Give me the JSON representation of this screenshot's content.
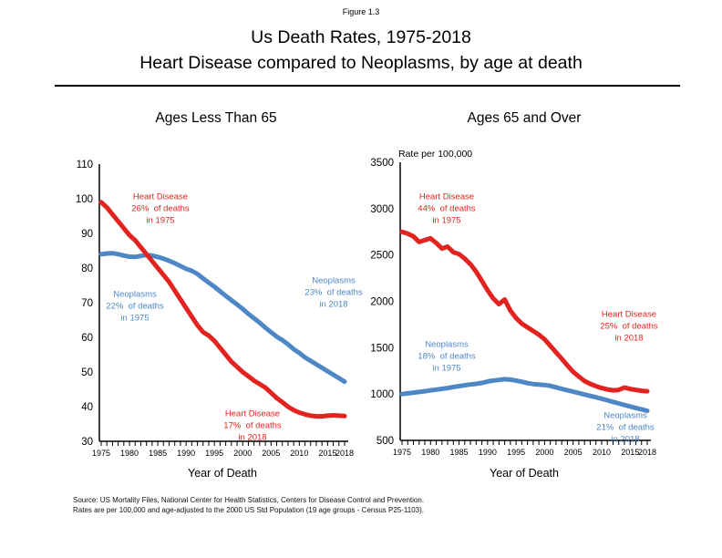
{
  "header": {
    "figure_label": "Figure 1.3",
    "title_line1": "Us Death Rates, 1975-2018",
    "title_line2": "Heart Disease compared to Neoplasms, by age at death"
  },
  "footer": {
    "source_line1": "Source: US Mortality Files, National Center for Health Statistics, Centers for Disease Control and Prevention.",
    "source_line2": "Rates are per 100,000 and age-adjusted to the 2000 US Std Population (19 age groups - Census P25-1103)."
  },
  "colors": {
    "heart_disease_red": "#e2231f",
    "neoplasms_blue": "#4e87c5",
    "axis_black": "#000000"
  },
  "chart_data": [
    {
      "type": "line",
      "title": "Ages Less Than 65",
      "xlabel": "Year of Death",
      "x_start": 1975,
      "x_end": 2018,
      "x_tick_labels": [
        "1975",
        "1980",
        "1985",
        "1990",
        "1995",
        "2000",
        "2005",
        "2010",
        "2015",
        "2018"
      ],
      "y_ticks": [
        30,
        40,
        50,
        60,
        70,
        80,
        90,
        100,
        110
      ],
      "ylim": [
        30,
        110
      ],
      "grid": false,
      "legend_position": "inline-annotations",
      "series": [
        {
          "name": "Neoplasms",
          "color": "#4e87c5",
          "values": [
            84,
            84.2,
            84.3,
            84,
            83.6,
            83.3,
            83.2,
            83.5,
            83.8,
            83.6,
            83.2,
            82.7,
            82.1,
            81.4,
            80.6,
            79.8,
            79.2,
            78.3,
            77,
            75.8,
            74.6,
            73.3,
            72,
            70.7,
            69.5,
            68.2,
            66.8,
            65.5,
            64.2,
            62.8,
            61.5,
            60.2,
            59.2,
            58,
            56.6,
            55.5,
            54.2,
            53.2,
            52.2,
            51.2,
            50.2,
            49.2,
            48.2,
            47.2
          ]
        },
        {
          "name": "Heart Disease",
          "color": "#e2231f",
          "values": [
            99,
            97.5,
            95.5,
            93.5,
            91.5,
            89.5,
            88,
            86,
            84,
            82,
            80,
            78,
            76,
            73.5,
            71,
            68.5,
            66,
            63.5,
            61.5,
            60.5,
            59,
            57,
            55,
            53,
            51.5,
            50,
            48.8,
            47.5,
            46.5,
            45.5,
            44,
            42.5,
            41.3,
            40,
            39,
            38.3,
            37.8,
            37.4,
            37.2,
            37.2,
            37.4,
            37.5,
            37.4,
            37.3
          ]
        }
      ],
      "annotations": [
        {
          "id": "heart-1975",
          "text": "Heart Disease\n26%  of deaths\nin 1975",
          "color": "#e2231f"
        },
        {
          "id": "neoplasms-1975",
          "text": "Neoplasms\n22%  of deaths\nin 1975",
          "color": "#4e87c5"
        },
        {
          "id": "neoplasms-2018",
          "text": "Neoplasms\n23%  of deaths\nin 2018",
          "color": "#4e87c5"
        },
        {
          "id": "heart-2018",
          "text": "Heart Disease\n17%  of deaths\nin 2018",
          "color": "#e2231f"
        }
      ]
    },
    {
      "type": "line",
      "title": "Ages 65 and Over",
      "xlabel": "Year of Death",
      "y_axis_note": "Rate per 100,000",
      "x_start": 1975,
      "x_end": 2018,
      "x_tick_labels": [
        "1975",
        "1980",
        "1985",
        "1990",
        "1995",
        "2000",
        "2005",
        "2010",
        "2015",
        "2018"
      ],
      "y_ticks": [
        500,
        1000,
        1500,
        2000,
        2500,
        3000,
        3500
      ],
      "ylim": [
        500,
        3500
      ],
      "grid": false,
      "legend_position": "inline-annotations",
      "series": [
        {
          "name": "Neoplasms",
          "color": "#4e87c5",
          "values": [
            1000,
            1008,
            1015,
            1022,
            1030,
            1040,
            1048,
            1056,
            1065,
            1075,
            1085,
            1095,
            1103,
            1110,
            1120,
            1135,
            1145,
            1152,
            1160,
            1155,
            1145,
            1132,
            1118,
            1108,
            1102,
            1098,
            1088,
            1072,
            1056,
            1040,
            1025,
            1010,
            995,
            980,
            965,
            950,
            933,
            915,
            898,
            882,
            866,
            850,
            835,
            820
          ]
        },
        {
          "name": "Heart Disease",
          "color": "#e2231f",
          "values": [
            2750,
            2730,
            2700,
            2640,
            2660,
            2680,
            2630,
            2570,
            2590,
            2530,
            2510,
            2460,
            2400,
            2320,
            2220,
            2120,
            2030,
            1970,
            2020,
            1900,
            1820,
            1760,
            1720,
            1680,
            1640,
            1590,
            1520,
            1450,
            1380,
            1310,
            1240,
            1190,
            1140,
            1110,
            1085,
            1065,
            1050,
            1040,
            1045,
            1070,
            1055,
            1045,
            1035,
            1030
          ]
        }
      ],
      "annotations": [
        {
          "id": "heart-1975",
          "text": "Heart Disease\n44%  of deaths\nin 1975",
          "color": "#e2231f"
        },
        {
          "id": "neoplasms-1975",
          "text": "Neoplasms\n18%  of deaths\nin 1975",
          "color": "#4e87c5"
        },
        {
          "id": "heart-2018",
          "text": "Heart Disease\n25%  of deaths\nin 2018",
          "color": "#e2231f"
        },
        {
          "id": "neoplasms-2018",
          "text": "Neoplasms\n21%  of deaths\nin 2018",
          "color": "#4e87c5"
        }
      ]
    }
  ]
}
